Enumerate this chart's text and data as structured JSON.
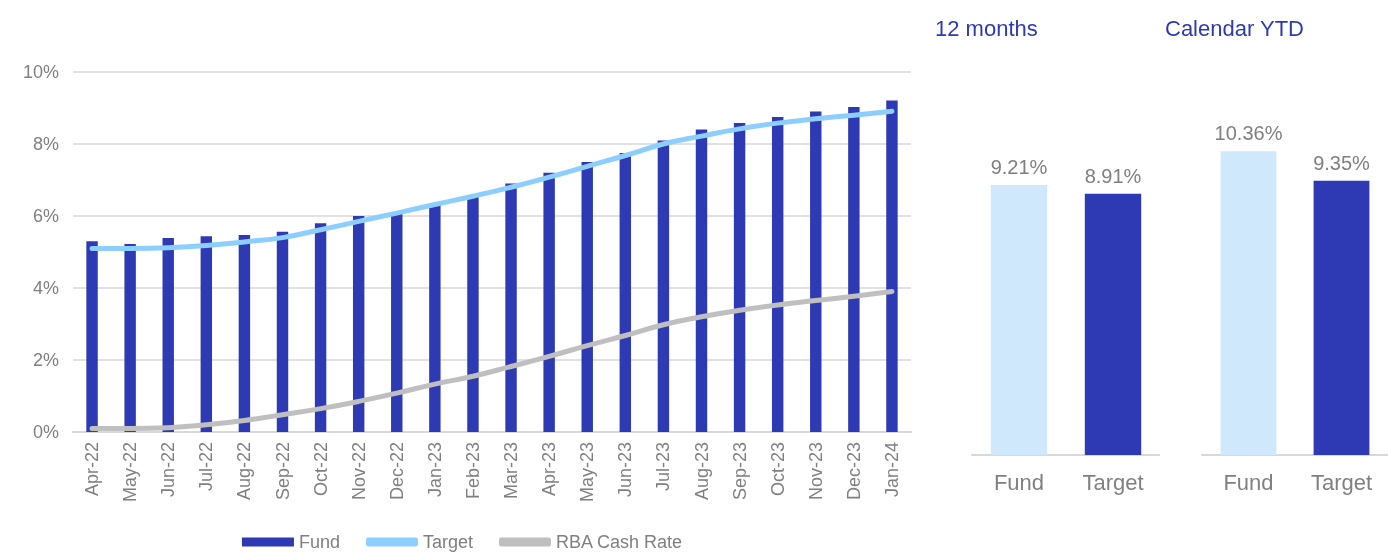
{
  "chart_data": [
    {
      "type": "bar",
      "categories": [
        "Apr-22",
        "May-22",
        "Jun-22",
        "Jul-22",
        "Aug-22",
        "Sep-22",
        "Oct-22",
        "Nov-22",
        "Dec-22",
        "Jan-23",
        "Feb-23",
        "Mar-23",
        "Apr-23",
        "May-23",
        "Jun-23",
        "Jul-23",
        "Aug-23",
        "Sep-23",
        "Oct-23",
        "Nov-23",
        "Dec-23",
        "Jan-24"
      ],
      "series": [
        {
          "name": "Fund",
          "color": "#2e3ab3",
          "values": [
            5.3,
            5.22,
            5.39,
            5.44,
            5.47,
            5.56,
            5.8,
            6.0,
            6.1,
            6.36,
            6.55,
            6.9,
            7.2,
            7.5,
            7.75,
            8.1,
            8.4,
            8.58,
            8.75,
            8.9,
            9.03,
            9.21
          ]
        },
        {
          "name": "Target",
          "type": "line",
          "color": "#8ccfff",
          "values": [
            5.1,
            5.1,
            5.12,
            5.18,
            5.28,
            5.4,
            5.62,
            5.85,
            6.08,
            6.32,
            6.55,
            6.8,
            7.08,
            7.38,
            7.68,
            8.0,
            8.22,
            8.42,
            8.58,
            8.7,
            8.8,
            8.91
          ]
        },
        {
          "name": "RBA Cash Rate",
          "type": "line",
          "color": "#bfbfbf",
          "values": [
            0.1,
            0.1,
            0.12,
            0.2,
            0.32,
            0.48,
            0.65,
            0.85,
            1.08,
            1.33,
            1.55,
            1.82,
            2.1,
            2.4,
            2.68,
            2.98,
            3.2,
            3.38,
            3.53,
            3.65,
            3.77,
            3.9
          ]
        }
      ],
      "ylim": [
        0,
        10
      ],
      "yticks": [
        {
          "value": 0,
          "label": "0%"
        },
        {
          "value": 2,
          "label": "2%"
        },
        {
          "value": 4,
          "label": "4%"
        },
        {
          "value": 6,
          "label": "6%"
        },
        {
          "value": 8,
          "label": "8%"
        },
        {
          "value": 10,
          "label": "10%"
        }
      ],
      "grid": "y",
      "legend": "bottom"
    },
    {
      "type": "bar",
      "title": "12 months",
      "categories": [
        "Fund",
        "Target"
      ],
      "values": [
        9.21,
        8.91
      ],
      "colors": [
        "#cfe8fb",
        "#2e3ab3"
      ],
      "value_labels": [
        "9.21%",
        "8.91%"
      ],
      "tick_labels": "x"
    },
    {
      "type": "bar",
      "title": "Calendar YTD",
      "categories": [
        "Fund",
        "Target"
      ],
      "values": [
        10.36,
        9.35
      ],
      "colors": [
        "#cfe8fb",
        "#2e3ab3"
      ],
      "value_labels": [
        "10.36%",
        "9.35%"
      ],
      "tick_labels": "x"
    }
  ]
}
